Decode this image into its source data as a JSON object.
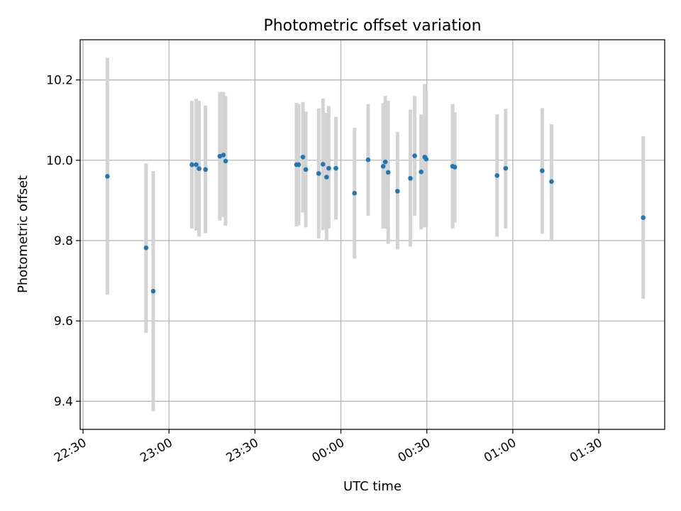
{
  "chart_data": {
    "type": "scatter",
    "title": "Photometric offset variation",
    "xlabel": "UTC time",
    "ylabel": "Photometric offset",
    "xlim": [
      "22:29",
      "01:53"
    ],
    "ylim": [
      9.33,
      10.3
    ],
    "xticks": [
      {
        "time": "22:30",
        "label": "22:30"
      },
      {
        "time": "23:00",
        "label": "23:00"
      },
      {
        "time": "23:30",
        "label": "23:30"
      },
      {
        "time": "00:00",
        "label": "00:00"
      },
      {
        "time": "00:30",
        "label": "00:30"
      },
      {
        "time": "01:00",
        "label": "01:00"
      },
      {
        "time": "01:30",
        "label": "01:30"
      }
    ],
    "yticks": [
      {
        "value": 9.4,
        "label": "9.4"
      },
      {
        "value": 9.6,
        "label": "9.6"
      },
      {
        "value": 9.8,
        "label": "9.8"
      },
      {
        "value": 10.0,
        "label": "10.0"
      },
      {
        "value": 10.2,
        "label": "10.2"
      }
    ],
    "grid": true,
    "x_tick_rotation": "30 degrees",
    "marker_color": "#1f77b4",
    "errorbar_color": "#d3d3d3",
    "points": [
      {
        "x": "22:38:30",
        "y": 9.96,
        "ylow": 9.665,
        "yhigh": 10.255
      },
      {
        "x": "22:52:00",
        "y": 9.782,
        "ylow": 9.57,
        "yhigh": 9.992
      },
      {
        "x": "22:54:30",
        "y": 9.674,
        "ylow": 9.375,
        "yhigh": 9.973
      },
      {
        "x": "23:08:00",
        "y": 9.989,
        "ylow": 9.83,
        "yhigh": 10.148
      },
      {
        "x": "23:09:30",
        "y": 9.989,
        "ylow": 9.825,
        "yhigh": 10.153
      },
      {
        "x": "23:10:30",
        "y": 9.979,
        "ylow": 9.81,
        "yhigh": 10.148
      },
      {
        "x": "23:12:45",
        "y": 9.977,
        "ylow": 9.818,
        "yhigh": 10.136
      },
      {
        "x": "23:17:45",
        "y": 10.01,
        "ylow": 9.85,
        "yhigh": 10.17
      },
      {
        "x": "23:19:00",
        "y": 10.013,
        "ylow": 9.858,
        "yhigh": 10.17
      },
      {
        "x": "23:19:45",
        "y": 9.998,
        "ylow": 9.837,
        "yhigh": 10.16
      },
      {
        "x": "23:44:30",
        "y": 9.989,
        "ylow": 9.835,
        "yhigh": 10.143
      },
      {
        "x": "23:45:15",
        "y": 9.989,
        "ylow": 9.838,
        "yhigh": 10.14
      },
      {
        "x": "23:46:45",
        "y": 10.008,
        "ylow": 9.87,
        "yhigh": 10.145
      },
      {
        "x": "23:47:45",
        "y": 9.977,
        "ylow": 9.833,
        "yhigh": 10.121
      },
      {
        "x": "23:52:15",
        "y": 9.967,
        "ylow": 9.805,
        "yhigh": 10.129
      },
      {
        "x": "23:53:45",
        "y": 9.99,
        "ylow": 9.826,
        "yhigh": 10.154
      },
      {
        "x": "23:55:00",
        "y": 9.958,
        "ylow": 9.8,
        "yhigh": 10.118
      },
      {
        "x": "23:55:45",
        "y": 9.98,
        "ylow": 9.83,
        "yhigh": 10.135
      },
      {
        "x": "23:58:15",
        "y": 9.98,
        "ylow": 9.852,
        "yhigh": 10.108
      },
      {
        "x": "00:04:45",
        "y": 9.918,
        "ylow": 9.755,
        "yhigh": 10.081
      },
      {
        "x": "00:09:30",
        "y": 10.001,
        "ylow": 9.862,
        "yhigh": 10.14
      },
      {
        "x": "00:14:45",
        "y": 9.985,
        "ylow": 9.83,
        "yhigh": 10.142
      },
      {
        "x": "00:15:30",
        "y": 9.996,
        "ylow": 9.83,
        "yhigh": 10.16
      },
      {
        "x": "00:16:30",
        "y": 9.97,
        "ylow": 9.792,
        "yhigh": 10.148
      },
      {
        "x": "00:19:45",
        "y": 9.923,
        "ylow": 9.778,
        "yhigh": 10.07
      },
      {
        "x": "00:24:15",
        "y": 9.955,
        "ylow": 9.785,
        "yhigh": 10.126
      },
      {
        "x": "00:25:45",
        "y": 10.011,
        "ylow": 9.862,
        "yhigh": 10.16
      },
      {
        "x": "00:28:00",
        "y": 9.971,
        "ylow": 9.828,
        "yhigh": 10.114
      },
      {
        "x": "00:29:15",
        "y": 10.008,
        "ylow": 9.833,
        "yhigh": 10.19
      },
      {
        "x": "00:29:45",
        "y": 10.003,
        "ylow": 9.833,
        "yhigh": 10.174
      },
      {
        "x": "00:39:00",
        "y": 9.985,
        "ylow": 9.83,
        "yhigh": 10.14
      },
      {
        "x": "00:39:45",
        "y": 9.983,
        "ylow": 9.845,
        "yhigh": 10.12
      },
      {
        "x": "00:54:30",
        "y": 9.962,
        "ylow": 9.81,
        "yhigh": 10.114
      },
      {
        "x": "00:57:30",
        "y": 9.98,
        "ylow": 9.83,
        "yhigh": 10.128
      },
      {
        "x": "01:10:15",
        "y": 9.974,
        "ylow": 9.817,
        "yhigh": 10.13
      },
      {
        "x": "01:13:30",
        "y": 9.947,
        "ylow": 9.8,
        "yhigh": 10.09
      },
      {
        "x": "01:45:30",
        "y": 9.857,
        "ylow": 9.655,
        "yhigh": 10.06
      }
    ]
  }
}
